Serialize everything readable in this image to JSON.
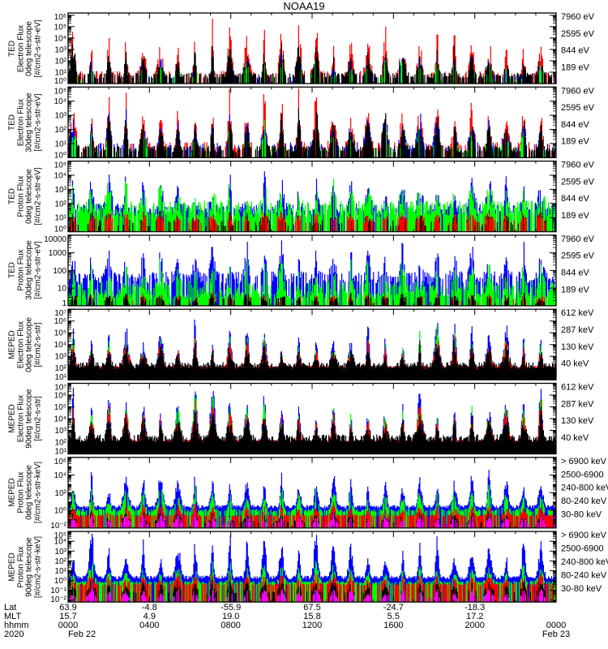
{
  "title": "NOAA19",
  "burst_hours": [
    0.25,
    1.15,
    2.0,
    2.85,
    3.7,
    4.55,
    5.4,
    6.25,
    7.1,
    7.95,
    8.8,
    9.65,
    10.5,
    11.35,
    12.2,
    13.05,
    13.9,
    14.75,
    15.6,
    16.45,
    17.3,
    18.15,
    19.0,
    19.85,
    20.7,
    21.55,
    22.4,
    23.25
  ],
  "chart_data": [
    {
      "type": "line",
      "instrument": "TED",
      "ylabel": [
        "TED",
        "Electron Flux",
        "0deg telescope",
        "[#/cm2-s-str-eV]"
      ],
      "yscale": "log",
      "ylim_log10": [
        0,
        6.2
      ],
      "yticks": [
        {
          "v": 6,
          "label": "10⁶"
        },
        {
          "v": 5,
          "label": "10⁵"
        },
        {
          "v": 4,
          "label": "10⁴"
        },
        {
          "v": 3,
          "label": "10³"
        },
        {
          "v": 2,
          "label": "10²"
        },
        {
          "v": 1,
          "label": "10¹"
        },
        {
          "v": 0,
          "label": "10⁰"
        }
      ],
      "series": [
        {
          "name": "7960 eV",
          "color": "#000000",
          "base": 0.7,
          "peak": 3.0,
          "noise": 0.5,
          "presence": 0.55,
          "order": 4
        },
        {
          "name": "2595 eV",
          "color": "#ff0000",
          "base": 0.8,
          "peak": 4.6,
          "noise": 0.6,
          "presence": 0.3,
          "order": 1
        },
        {
          "name": "844 eV",
          "color": "#00ff00",
          "base": 0.5,
          "peak": 2.0,
          "noise": 0.4,
          "presence": 0.1,
          "order": 3
        },
        {
          "name": "189 eV",
          "color": "#0000ff",
          "base": 0.6,
          "peak": 2.3,
          "noise": 0.4,
          "presence": 0.1,
          "order": 2
        }
      ]
    },
    {
      "type": "line",
      "instrument": "TED",
      "ylabel": [
        "TED",
        "Electron Flux",
        "30deg telescope",
        "[#/cm2-s-str-eV]"
      ],
      "yscale": "log",
      "ylim_log10": [
        0,
        5.0
      ],
      "yticks": [
        {
          "v": 5,
          "label": "10⁵"
        },
        {
          "v": 4,
          "label": "10⁴"
        },
        {
          "v": 3,
          "label": "10³"
        },
        {
          "v": 2,
          "label": "10²"
        },
        {
          "v": 1,
          "label": "10¹"
        },
        {
          "v": 0,
          "label": "10⁰"
        }
      ],
      "series": [
        {
          "name": "7960 eV",
          "color": "#000000",
          "base": 0.6,
          "peak": 3.2,
          "noise": 0.5,
          "presence": 0.6,
          "order": 4
        },
        {
          "name": "2595 eV",
          "color": "#ff0000",
          "base": 0.8,
          "peak": 4.2,
          "noise": 0.6,
          "presence": 0.3,
          "order": 1
        },
        {
          "name": "844 eV",
          "color": "#00ff00",
          "base": 0.6,
          "peak": 2.2,
          "noise": 0.4,
          "presence": 0.1,
          "order": 3
        },
        {
          "name": "189 eV",
          "color": "#0000ff",
          "base": 0.8,
          "peak": 3.0,
          "noise": 0.6,
          "presence": 0.2,
          "order": 2
        }
      ]
    },
    {
      "type": "line",
      "instrument": "TED",
      "ylabel": [
        "TED",
        "Proton Flux",
        "0deg telescope",
        "[#/cm2-s-str-eV]"
      ],
      "yscale": "log",
      "ylim_log10": [
        0,
        5.0
      ],
      "yticks": [
        {
          "v": 5,
          "label": "10⁵"
        },
        {
          "v": 4,
          "label": "10⁴"
        },
        {
          "v": 3,
          "label": "10³"
        },
        {
          "v": 2,
          "label": "10²"
        },
        {
          "v": 1,
          "label": "10¹"
        },
        {
          "v": 0,
          "label": "10⁰"
        }
      ],
      "series": [
        {
          "name": "7960 eV",
          "color": "#000000",
          "base": 0.6,
          "peak": 1.2,
          "noise": 0.5,
          "presence": 0.15,
          "order": 3
        },
        {
          "name": "2595 eV",
          "color": "#ff0000",
          "base": 0.8,
          "peak": 1.2,
          "noise": 0.4,
          "presence": 0.03,
          "order": 4
        },
        {
          "name": "844 eV",
          "color": "#00ff00",
          "base": 1.6,
          "peak": 3.0,
          "noise": 1.2,
          "presence": 0.8,
          "order": 2
        },
        {
          "name": "189 eV",
          "color": "#0000ff",
          "base": 1.6,
          "peak": 3.6,
          "noise": 0.8,
          "presence": 0.7,
          "order": 1
        }
      ]
    },
    {
      "type": "line",
      "instrument": "TED",
      "ylabel": [
        "TED",
        "Proton Flux",
        "30deg telescope",
        "[#/cm2-s-str-eV]"
      ],
      "yscale": "log",
      "ylim_log10": [
        0,
        4.0
      ],
      "yticks": [
        {
          "v": 4,
          "label": "10000"
        },
        {
          "v": 3,
          "label": "1000"
        },
        {
          "v": 2,
          "label": "100"
        },
        {
          "v": 1,
          "label": "10"
        },
        {
          "v": 0,
          "label": "1"
        }
      ],
      "series": [
        {
          "name": "7960 eV",
          "color": "#000000",
          "base": 0.3,
          "peak": 0.6,
          "noise": 0.3,
          "presence": 0.02,
          "order": 4
        },
        {
          "name": "2595 eV",
          "color": "#ff0000",
          "base": 0.3,
          "peak": 0.6,
          "noise": 0.3,
          "presence": 0.02,
          "order": 3
        },
        {
          "name": "844 eV",
          "color": "#00ff00",
          "base": 0.9,
          "peak": 2.2,
          "noise": 1.0,
          "presence": 0.8,
          "order": 2
        },
        {
          "name": "189 eV",
          "color": "#0000ff",
          "base": 1.6,
          "peak": 3.3,
          "noise": 0.7,
          "presence": 0.65,
          "order": 1
        }
      ]
    },
    {
      "type": "line",
      "instrument": "MEPED",
      "ylabel": [
        "MEPED",
        "Electron Flux",
        "0deg telescope",
        "[#/cm2-s-str]"
      ],
      "yscale": "log",
      "ylim_log10": [
        1,
        7
      ],
      "yticks": [
        {
          "v": 7,
          "label": "10⁷"
        },
        {
          "v": 6,
          "label": "10⁶"
        },
        {
          "v": 5,
          "label": "10⁵"
        },
        {
          "v": 4,
          "label": "10⁴"
        },
        {
          "v": 3,
          "label": "10³"
        },
        {
          "v": 2,
          "label": "10²"
        },
        {
          "v": 1,
          "label": "10¹"
        }
      ],
      "series": [
        {
          "name": "612 keV",
          "color": "#000000",
          "base": 2.2,
          "peak": 4.0,
          "noise": 0.6,
          "presence": 1,
          "order": 4
        },
        {
          "name": "287 keV",
          "color": "#ff0000",
          "base": 2.1,
          "peak": 4.5,
          "noise": 0.2,
          "presence": 1,
          "order": 3
        },
        {
          "name": "130 keV",
          "color": "#00ff00",
          "base": 1.8,
          "peak": 5.0,
          "noise": 0.1,
          "presence": 1,
          "order": 2
        },
        {
          "name": "40 keV",
          "color": "#0000ff",
          "base": 2.0,
          "peak": 6.0,
          "noise": 0.3,
          "presence": 1,
          "order": 1
        }
      ]
    },
    {
      "type": "line",
      "instrument": "MEPED",
      "ylabel": [
        "MEPED",
        "Electron Flux",
        "90deg telescope",
        "[#/cm2-s-str]"
      ],
      "yscale": "log",
      "ylim_log10": [
        1,
        7
      ],
      "yticks": [
        {
          "v": 7,
          "label": "10⁷"
        },
        {
          "v": 6,
          "label": "10⁶"
        },
        {
          "v": 5,
          "label": "10⁵"
        },
        {
          "v": 4,
          "label": "10⁴"
        },
        {
          "v": 3,
          "label": "10³"
        },
        {
          "v": 2,
          "label": "10²"
        },
        {
          "v": 1,
          "label": "10¹"
        }
      ],
      "series": [
        {
          "name": "612 keV",
          "color": "#000000",
          "base": 2.3,
          "peak": 4.3,
          "noise": 0.7,
          "presence": 1,
          "order": 4
        },
        {
          "name": "287 keV",
          "color": "#ff0000",
          "base": 2.1,
          "peak": 5.2,
          "noise": 0.2,
          "presence": 1,
          "order": 3
        },
        {
          "name": "130 keV",
          "color": "#00ff00",
          "base": 1.8,
          "peak": 5.8,
          "noise": 0.1,
          "presence": 1,
          "order": 2
        },
        {
          "name": "40 keV",
          "color": "#0000ff",
          "base": 2.0,
          "peak": 6.4,
          "noise": 0.3,
          "presence": 1,
          "order": 1
        }
      ]
    },
    {
      "type": "line",
      "instrument": "MEPED",
      "ylabel": [
        "MEPED",
        "Proton Flux",
        "0deg telescope",
        "[#/cm2-s-str-keV]"
      ],
      "yscale": "log",
      "ylim_log10": [
        -2,
        6
      ],
      "yticks": [
        {
          "v": 6,
          "label": "10⁶"
        },
        {
          "v": 4,
          "label": "10⁴"
        },
        {
          "v": 2,
          "label": "10²"
        },
        {
          "v": 0,
          "label": "10⁰"
        },
        {
          "v": -2,
          "label": "10⁻²"
        }
      ],
      "series": [
        {
          "name": "> 6900 keV",
          "color": "#ff00ff",
          "base": -1.5,
          "peak": -0.6,
          "noise": 0.3,
          "presence": 0.05,
          "order": 5
        },
        {
          "name": "2500-6900",
          "color": "#000000",
          "base": -1.3,
          "peak": -0.3,
          "noise": 0.3,
          "presence": 0.05,
          "order": 4
        },
        {
          "name": "240-800 keV",
          "color": "#ff0000",
          "base": -0.6,
          "peak": 0.6,
          "noise": 0.2,
          "presence": 0.6,
          "order": 3
        },
        {
          "name": "80-240 keV",
          "color": "#00ff00",
          "base": 0.0,
          "peak": 2.3,
          "noise": 0.4,
          "presence": 0.7,
          "order": 2
        },
        {
          "name": "30-80 keV",
          "color": "#0000ff",
          "base": 0.4,
          "peak": 3.8,
          "noise": 0.4,
          "presence": 1,
          "order": 1
        }
      ]
    },
    {
      "type": "line",
      "instrument": "MEPED",
      "ylabel": [
        "MEPED",
        "Proton Flux",
        "90deg telescope",
        "[#/cm2-s-str-keV]"
      ],
      "yscale": "log",
      "ylim_log10": [
        -2.2,
        5
      ],
      "yticks": [
        {
          "v": 5,
          "label": "10⁵"
        },
        {
          "v": 4,
          "label": "10⁴"
        },
        {
          "v": 3,
          "label": "10³"
        },
        {
          "v": 2,
          "label": "10²"
        },
        {
          "v": 1,
          "label": "10¹"
        },
        {
          "v": 0,
          "label": "10⁰"
        },
        {
          "v": -1,
          "label": "10⁻¹"
        },
        {
          "v": -2,
          "label": "10⁻²"
        }
      ],
      "series": [
        {
          "name": "> 6900 keV",
          "color": "#ff00ff",
          "base": -1.8,
          "peak": -0.9,
          "noise": 0.3,
          "presence": 0.05,
          "order": 5
        },
        {
          "name": "2500-6900",
          "color": "#000000",
          "base": -1.2,
          "peak": -0.1,
          "noise": 0.3,
          "presence": 0.05,
          "order": 4
        },
        {
          "name": "240-800 keV",
          "color": "#ff0000",
          "base": -0.4,
          "peak": 0.6,
          "noise": 0.2,
          "presence": 0.5,
          "order": 3
        },
        {
          "name": "80-240 keV",
          "color": "#00ff00",
          "base": -0.2,
          "peak": 1.6,
          "noise": 0.3,
          "presence": 0.7,
          "order": 2
        },
        {
          "name": "30-80 keV",
          "color": "#0000ff",
          "base": 0.3,
          "peak": 3.9,
          "noise": 0.4,
          "presence": 1,
          "order": 1
        }
      ]
    }
  ],
  "x_axis": {
    "range_hours": [
      0,
      24
    ],
    "row_labels": [
      "Lat",
      "MLT",
      "hhmm",
      "2020"
    ],
    "columns": [
      {
        "hour": 0,
        "lat": "63.9",
        "mlt": "15.7",
        "hhmm": "0000",
        "date": "Feb 22"
      },
      {
        "hour": 4,
        "lat": "-4.8",
        "mlt": "4.9",
        "hhmm": "0400",
        "date": ""
      },
      {
        "hour": 8,
        "lat": "-55.9",
        "mlt": "19.0",
        "hhmm": "0800",
        "date": ""
      },
      {
        "hour": 12,
        "lat": "67.5",
        "mlt": "15.8",
        "hhmm": "1200",
        "date": ""
      },
      {
        "hour": 16,
        "lat": "-24.7",
        "mlt": "5.5",
        "hhmm": "1600",
        "date": ""
      },
      {
        "hour": 20,
        "lat": "-18.3",
        "mlt": "17.2",
        "hhmm": "2000",
        "date": ""
      },
      {
        "hour": 24,
        "lat": "",
        "mlt": "",
        "hhmm": "0000",
        "date": "Feb 23"
      }
    ]
  }
}
